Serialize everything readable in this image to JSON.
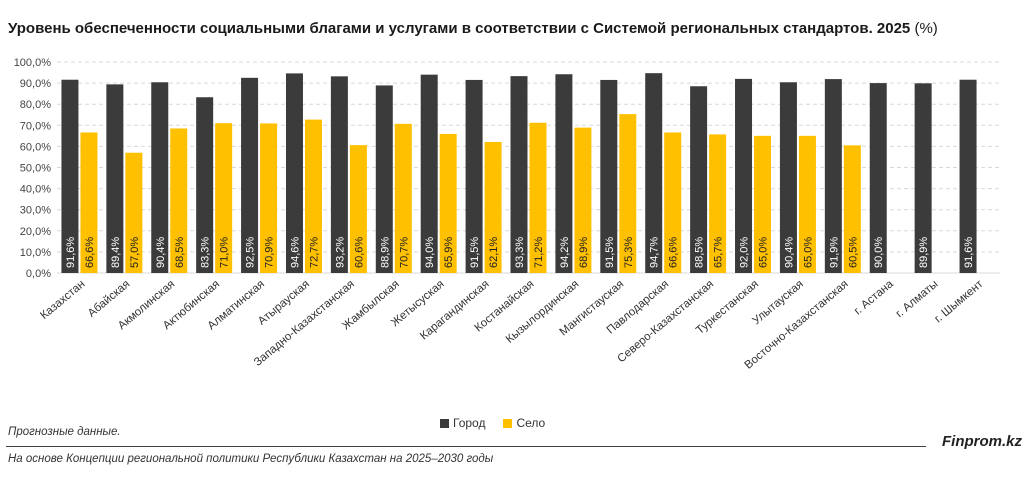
{
  "title": "Уровень обеспеченности социальными благами и услугами в соответствии с Системой региональных стандартов. 2025",
  "title_unit": "(%)",
  "notes": {
    "forecast": "Прогнозные данные.",
    "source": "На основе Концепции региональной политики Республики Казахстан на 2025–2030 годы",
    "brand": "Finprom.kz"
  },
  "colors": {
    "city": "#3b3b3b",
    "village": "#ffc000",
    "grid": "#d9d9d9"
  },
  "chart_data": {
    "type": "bar",
    "title": "Уровень обеспеченности социальными благами и услугами в соответствии с Системой региональных стандартов. 2025 (%)",
    "ylim": [
      0,
      100
    ],
    "yticks": [
      "0,0%",
      "10,0%",
      "20,0%",
      "30,0%",
      "40,0%",
      "50,0%",
      "60,0%",
      "70,0%",
      "80,0%",
      "90,0%",
      "100,0%"
    ],
    "grid": true,
    "legend_position": "bottom",
    "categories": [
      "Казахстан",
      "Абайская",
      "Акмолинская",
      "Актюбинская",
      "Алматинская",
      "Атырауская",
      "Западно-Казахстанская",
      "Жамбылская",
      "Жетысуская",
      "Карагандинская",
      "Костанайская",
      "Кызылординская",
      "Мангистауская",
      "Павлодарская",
      "Северо-Казахстанская",
      "Туркестанская",
      "Улытауская",
      "Восточно-Казахстанская",
      "г. Астана",
      "г. Алматы",
      "г. Шымкент"
    ],
    "series": [
      {
        "name": "Город",
        "values": [
          91.6,
          89.4,
          90.4,
          83.3,
          92.5,
          94.6,
          93.2,
          88.9,
          94.0,
          91.5,
          93.3,
          94.2,
          91.5,
          94.7,
          88.5,
          92.0,
          90.4,
          91.9,
          90.0,
          89.9,
          91.6
        ],
        "labels": [
          "91,6%",
          "89,4%",
          "90,4%",
          "83,3%",
          "92,5%",
          "94,6%",
          "93,2%",
          "88,9%",
          "94,0%",
          "91,5%",
          "93,3%",
          "94,2%",
          "91,5%",
          "94,7%",
          "88,5%",
          "92,0%",
          "90,4%",
          "91,9%",
          "90,0%",
          "89,9%",
          "91,6%"
        ]
      },
      {
        "name": "Село",
        "values": [
          66.6,
          57.0,
          68.5,
          71.0,
          70.9,
          72.7,
          60.6,
          70.7,
          65.9,
          62.1,
          71.2,
          68.9,
          75.3,
          66.6,
          65.7,
          65.0,
          65.0,
          60.5,
          null,
          null,
          null
        ],
        "labels": [
          "66,6%",
          "57,0%",
          "68,5%",
          "71,0%",
          "70,9%",
          "72,7%",
          "60,6%",
          "70,7%",
          "65,9%",
          "62,1%",
          "71,2%",
          "68,9%",
          "75,3%",
          "66,6%",
          "65,7%",
          "65,0%",
          "65,0%",
          "60,5%",
          "",
          "",
          ""
        ]
      }
    ]
  }
}
